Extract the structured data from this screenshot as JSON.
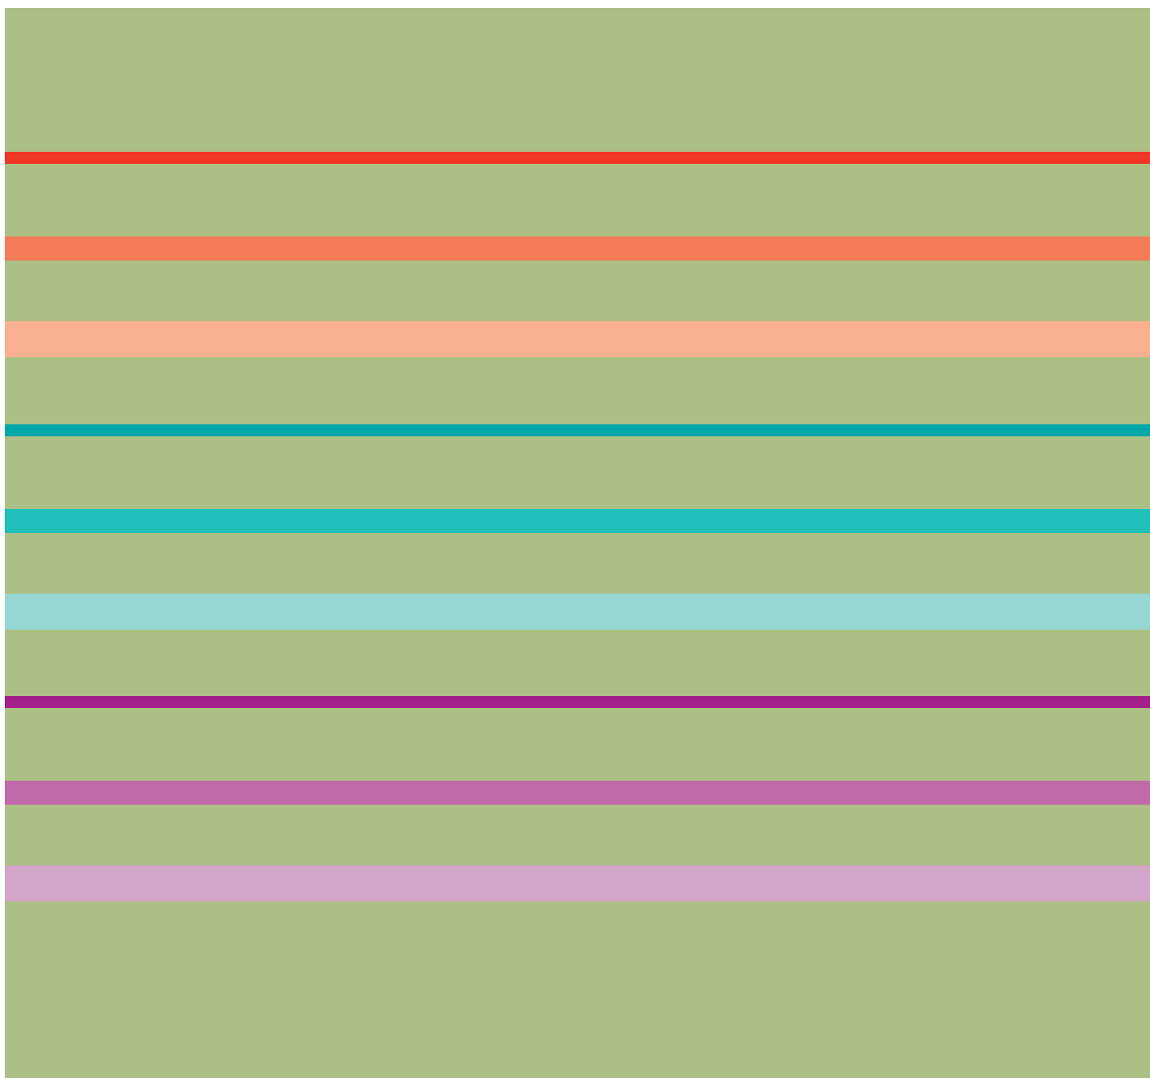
{
  "background_color": "#acbf84",
  "stripes": [
    {
      "group": "red",
      "color": "#ef3524"
    },
    {
      "group": "red",
      "color": "#f37b57"
    },
    {
      "group": "red",
      "color": "#f9b090"
    },
    {
      "group": "teal",
      "color": "#00a8a9"
    },
    {
      "group": "teal",
      "color": "#20bfbb"
    },
    {
      "group": "teal",
      "color": "#96d6d3"
    },
    {
      "group": "magenta",
      "color": "#a31f8a"
    },
    {
      "group": "magenta",
      "color": "#c06aa9"
    },
    {
      "group": "magenta",
      "color": "#d2a5c9"
    }
  ]
}
